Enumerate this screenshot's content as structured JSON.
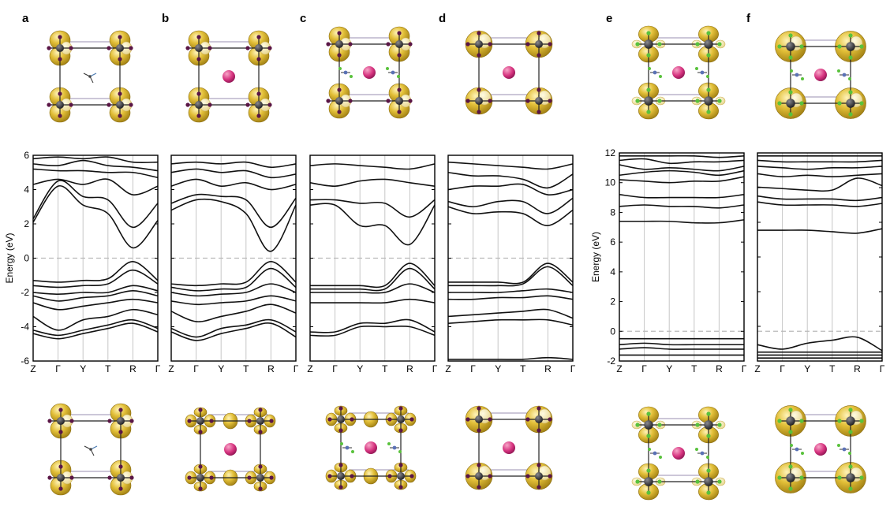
{
  "figure": {
    "panel_letters": [
      "a",
      "b",
      "c",
      "d",
      "e",
      "f"
    ],
    "colors": {
      "isosurface": "#d9b32c",
      "isosurface_light": "#efdf95",
      "center_atom": "#d6337f",
      "anion": "#5a1646",
      "anion_light": "#b7a0c6",
      "metal": "#2d2d30",
      "halogen": "#59c23c",
      "nitrogen": "#5b72b6",
      "bands": "#111111",
      "fermi_line": "#b9b9b9",
      "kpoint_line": "#c6c6c6"
    },
    "structure_icons": {
      "top": [
        "orbital-isosurface-top-a",
        "orbital-isosurface-top-b",
        "orbital-isosurface-top-c",
        "orbital-isosurface-top-d",
        "orbital-isosurface-top-e",
        "orbital-isosurface-top-f"
      ],
      "bottom": [
        "orbital-isosurface-bottom-a",
        "orbital-isosurface-bottom-b",
        "orbital-isosurface-bottom-c",
        "orbital-isosurface-bottom-d",
        "orbital-isosurface-bottom-e",
        "orbital-isosurface-bottom-f"
      ]
    }
  },
  "chart_data": [
    {
      "panel": "a",
      "type": "line",
      "ylabel": "Energy (eV)",
      "ylim": [
        -6,
        6
      ],
      "yticks": [
        "6",
        "4",
        "2",
        "0",
        "-2",
        "-4",
        "-6"
      ],
      "kpoints": [
        "Z",
        "Γ",
        "Y",
        "T",
        "R",
        "Γ"
      ],
      "series": [
        {
          "values": [
            -4.4,
            -4.7,
            -4.4,
            -4.1,
            -3.8,
            -4.3
          ]
        },
        {
          "values": [
            -4.2,
            -4.5,
            -4.2,
            -3.9,
            -3.6,
            -4.1
          ]
        },
        {
          "values": [
            -3.4,
            -4.2,
            -3.6,
            -3.4,
            -3.0,
            -3.3
          ]
        },
        {
          "values": [
            -2.6,
            -3.0,
            -2.8,
            -2.6,
            -2.4,
            -2.6
          ]
        },
        {
          "values": [
            -2.2,
            -2.5,
            -2.3,
            -2.2,
            -1.9,
            -2.2
          ]
        },
        {
          "values": [
            -2.0,
            -2.1,
            -2.0,
            -2.0,
            -1.6,
            -1.9
          ]
        },
        {
          "values": [
            -1.6,
            -1.7,
            -1.6,
            -1.5,
            -0.7,
            -1.5
          ]
        },
        {
          "values": [
            -1.3,
            -1.4,
            -1.3,
            -1.2,
            -0.2,
            -1.3
          ]
        },
        {
          "values": [
            2.1,
            4.2,
            3.1,
            2.6,
            0.6,
            2.2
          ]
        },
        {
          "values": [
            2.3,
            4.5,
            3.6,
            3.4,
            1.8,
            3.2
          ]
        },
        {
          "values": [
            4.3,
            4.6,
            4.3,
            4.6,
            3.7,
            4.2
          ]
        },
        {
          "values": [
            5.2,
            5.1,
            5.1,
            5.0,
            5.0,
            4.7
          ]
        },
        {
          "values": [
            5.5,
            5.4,
            5.7,
            5.4,
            5.3,
            5.1
          ]
        },
        {
          "values": [
            5.8,
            5.9,
            5.8,
            5.9,
            5.6,
            5.6
          ]
        }
      ]
    },
    {
      "panel": "b",
      "type": "line",
      "ylim": [
        -6,
        6
      ],
      "kpoints": [
        "Z",
        "Γ",
        "Y",
        "T",
        "R",
        "Γ"
      ],
      "series": [
        {
          "values": [
            -4.3,
            -4.8,
            -4.4,
            -4.1,
            -3.8,
            -4.6
          ]
        },
        {
          "values": [
            -4.1,
            -4.6,
            -4.1,
            -3.9,
            -3.6,
            -4.3
          ]
        },
        {
          "values": [
            -3.1,
            -3.7,
            -3.4,
            -3.1,
            -2.7,
            -3.2
          ]
        },
        {
          "values": [
            -2.5,
            -2.7,
            -2.6,
            -2.5,
            -2.2,
            -2.5
          ]
        },
        {
          "values": [
            -2.0,
            -2.2,
            -2.1,
            -2.0,
            -1.5,
            -2.0
          ]
        },
        {
          "values": [
            -1.7,
            -1.9,
            -1.8,
            -1.7,
            -0.6,
            -1.7
          ]
        },
        {
          "values": [
            -1.5,
            -1.6,
            -1.5,
            -1.4,
            -0.2,
            -1.4
          ]
        },
        {
          "values": [
            2.8,
            3.4,
            3.3,
            2.6,
            0.4,
            3.1
          ]
        },
        {
          "values": [
            3.2,
            3.7,
            3.6,
            3.4,
            1.8,
            3.5
          ]
        },
        {
          "values": [
            4.2,
            4.6,
            4.2,
            4.4,
            4.0,
            4.3
          ]
        },
        {
          "values": [
            5.0,
            5.2,
            5.0,
            5.1,
            4.7,
            4.9
          ]
        },
        {
          "values": [
            5.5,
            5.6,
            5.5,
            5.6,
            5.3,
            5.5
          ]
        }
      ]
    },
    {
      "panel": "c",
      "type": "line",
      "ylim": [
        -6,
        6
      ],
      "kpoints": [
        "Z",
        "Γ",
        "Y",
        "T",
        "R",
        "Γ"
      ],
      "series": [
        {
          "values": [
            -4.5,
            -4.5,
            -4.0,
            -4.0,
            -4.0,
            -4.5
          ]
        },
        {
          "values": [
            -4.3,
            -4.3,
            -3.8,
            -3.8,
            -3.6,
            -4.3
          ]
        },
        {
          "values": [
            -2.6,
            -2.6,
            -2.6,
            -2.6,
            -2.4,
            -2.6
          ]
        },
        {
          "values": [
            -2.0,
            -2.0,
            -2.0,
            -2.0,
            -1.5,
            -2.0
          ]
        },
        {
          "values": [
            -1.8,
            -1.8,
            -1.8,
            -1.8,
            -0.6,
            -1.8
          ]
        },
        {
          "values": [
            -1.6,
            -1.6,
            -1.6,
            -1.6,
            -0.3,
            -1.6
          ]
        },
        {
          "values": [
            3.1,
            3.1,
            1.9,
            1.9,
            0.8,
            3.1
          ]
        },
        {
          "values": [
            3.4,
            3.4,
            3.2,
            3.2,
            2.4,
            3.4
          ]
        },
        {
          "values": [
            4.4,
            4.2,
            4.5,
            4.6,
            4.4,
            4.2
          ]
        },
        {
          "values": [
            5.4,
            5.5,
            5.4,
            5.3,
            5.2,
            5.5
          ]
        }
      ]
    },
    {
      "panel": "d",
      "type": "line",
      "ylim": [
        -6,
        6
      ],
      "kpoints": [
        "Z",
        "Γ",
        "Y",
        "T",
        "R",
        "Γ"
      ],
      "series": [
        {
          "values": [
            -5.9,
            -5.9,
            -5.9,
            -5.9,
            -5.8,
            -5.9
          ]
        },
        {
          "values": [
            -3.8,
            -3.7,
            -3.6,
            -3.6,
            -3.6,
            -3.9
          ]
        },
        {
          "values": [
            -3.4,
            -3.3,
            -3.2,
            -3.1,
            -3.0,
            -3.5
          ]
        },
        {
          "values": [
            -2.4,
            -2.4,
            -2.3,
            -2.3,
            -2.2,
            -2.4
          ]
        },
        {
          "values": [
            -2.0,
            -2.0,
            -2.0,
            -1.9,
            -1.8,
            -2.0
          ]
        },
        {
          "values": [
            -1.6,
            -1.6,
            -1.6,
            -1.5,
            -0.5,
            -1.6
          ]
        },
        {
          "values": [
            -1.4,
            -1.4,
            -1.4,
            -1.4,
            -0.3,
            -1.4
          ]
        },
        {
          "values": [
            3.0,
            2.6,
            2.7,
            2.6,
            1.9,
            2.8
          ]
        },
        {
          "values": [
            3.3,
            3.0,
            3.3,
            3.3,
            2.6,
            3.5
          ]
        },
        {
          "values": [
            4.0,
            4.2,
            4.2,
            4.3,
            3.7,
            4.0
          ]
        },
        {
          "values": [
            5.0,
            4.8,
            4.8,
            4.6,
            4.1,
            4.9
          ]
        },
        {
          "values": [
            5.6,
            5.5,
            5.4,
            5.3,
            5.2,
            5.5
          ]
        }
      ]
    },
    {
      "panel": "e",
      "type": "line",
      "ylabel": "Energy (eV)",
      "ylim": [
        -2,
        12
      ],
      "yticks": [
        "12",
        "10",
        "8",
        "6",
        "4",
        "2",
        "0",
        "-2"
      ],
      "kpoints": [
        "Z",
        "Γ",
        "Y",
        "T",
        "R",
        "Γ"
      ],
      "series": [
        {
          "values": [
            -1.6,
            -1.6,
            -1.6,
            -1.6,
            -1.6,
            -1.6
          ]
        },
        {
          "values": [
            -1.2,
            -1.1,
            -1.2,
            -1.2,
            -1.2,
            -1.2
          ]
        },
        {
          "values": [
            -0.9,
            -0.8,
            -0.9,
            -0.9,
            -0.9,
            -0.9
          ]
        },
        {
          "values": [
            -0.5,
            -0.5,
            -0.5,
            -0.5,
            -0.5,
            -0.5
          ]
        },
        {
          "values": [
            7.4,
            7.4,
            7.4,
            7.3,
            7.3,
            7.5
          ]
        },
        {
          "values": [
            8.4,
            8.5,
            8.4,
            8.4,
            8.3,
            8.5
          ]
        },
        {
          "values": [
            9.2,
            9.0,
            9.0,
            9.0,
            9.0,
            9.2
          ]
        },
        {
          "values": [
            10.2,
            10.1,
            10.0,
            10.1,
            10.1,
            10.4
          ]
        },
        {
          "values": [
            10.5,
            10.7,
            10.8,
            10.7,
            10.5,
            10.8
          ]
        },
        {
          "values": [
            11.2,
            10.9,
            11.0,
            10.9,
            10.8,
            11.1
          ]
        },
        {
          "values": [
            11.5,
            11.6,
            11.3,
            11.4,
            11.4,
            11.5
          ]
        },
        {
          "values": [
            11.8,
            11.8,
            11.8,
            11.8,
            11.7,
            11.8
          ]
        }
      ]
    },
    {
      "panel": "f",
      "type": "line",
      "ylim": [
        -2,
        12
      ],
      "kpoints": [
        "Z",
        "Γ",
        "Y",
        "T",
        "R",
        "Γ"
      ],
      "series": [
        {
          "values": [
            -1.8,
            -1.8,
            -1.8,
            -1.8,
            -1.8,
            -1.8
          ]
        },
        {
          "values": [
            -1.6,
            -1.6,
            -1.6,
            -1.6,
            -1.6,
            -1.6
          ]
        },
        {
          "values": [
            -1.4,
            -1.4,
            -1.4,
            -1.4,
            -1.4,
            -1.4
          ]
        },
        {
          "values": [
            -0.9,
            -1.2,
            -0.8,
            -0.6,
            -0.4,
            -1.3
          ]
        },
        {
          "values": [
            6.8,
            6.8,
            6.8,
            6.7,
            6.6,
            6.9
          ]
        },
        {
          "values": [
            8.7,
            8.5,
            8.5,
            8.5,
            8.4,
            8.6
          ]
        },
        {
          "values": [
            9.1,
            8.9,
            8.9,
            8.9,
            8.8,
            9.0
          ]
        },
        {
          "values": [
            9.7,
            9.6,
            9.5,
            9.5,
            10.3,
            9.8
          ]
        },
        {
          "values": [
            10.6,
            10.4,
            10.5,
            10.4,
            10.5,
            10.6
          ]
        },
        {
          "values": [
            11.1,
            11.0,
            10.9,
            11.0,
            11.0,
            11.1
          ]
        },
        {
          "values": [
            11.5,
            11.4,
            11.4,
            11.4,
            11.4,
            11.5
          ]
        },
        {
          "values": [
            11.8,
            11.8,
            11.8,
            11.8,
            11.8,
            11.8
          ]
        }
      ]
    }
  ]
}
